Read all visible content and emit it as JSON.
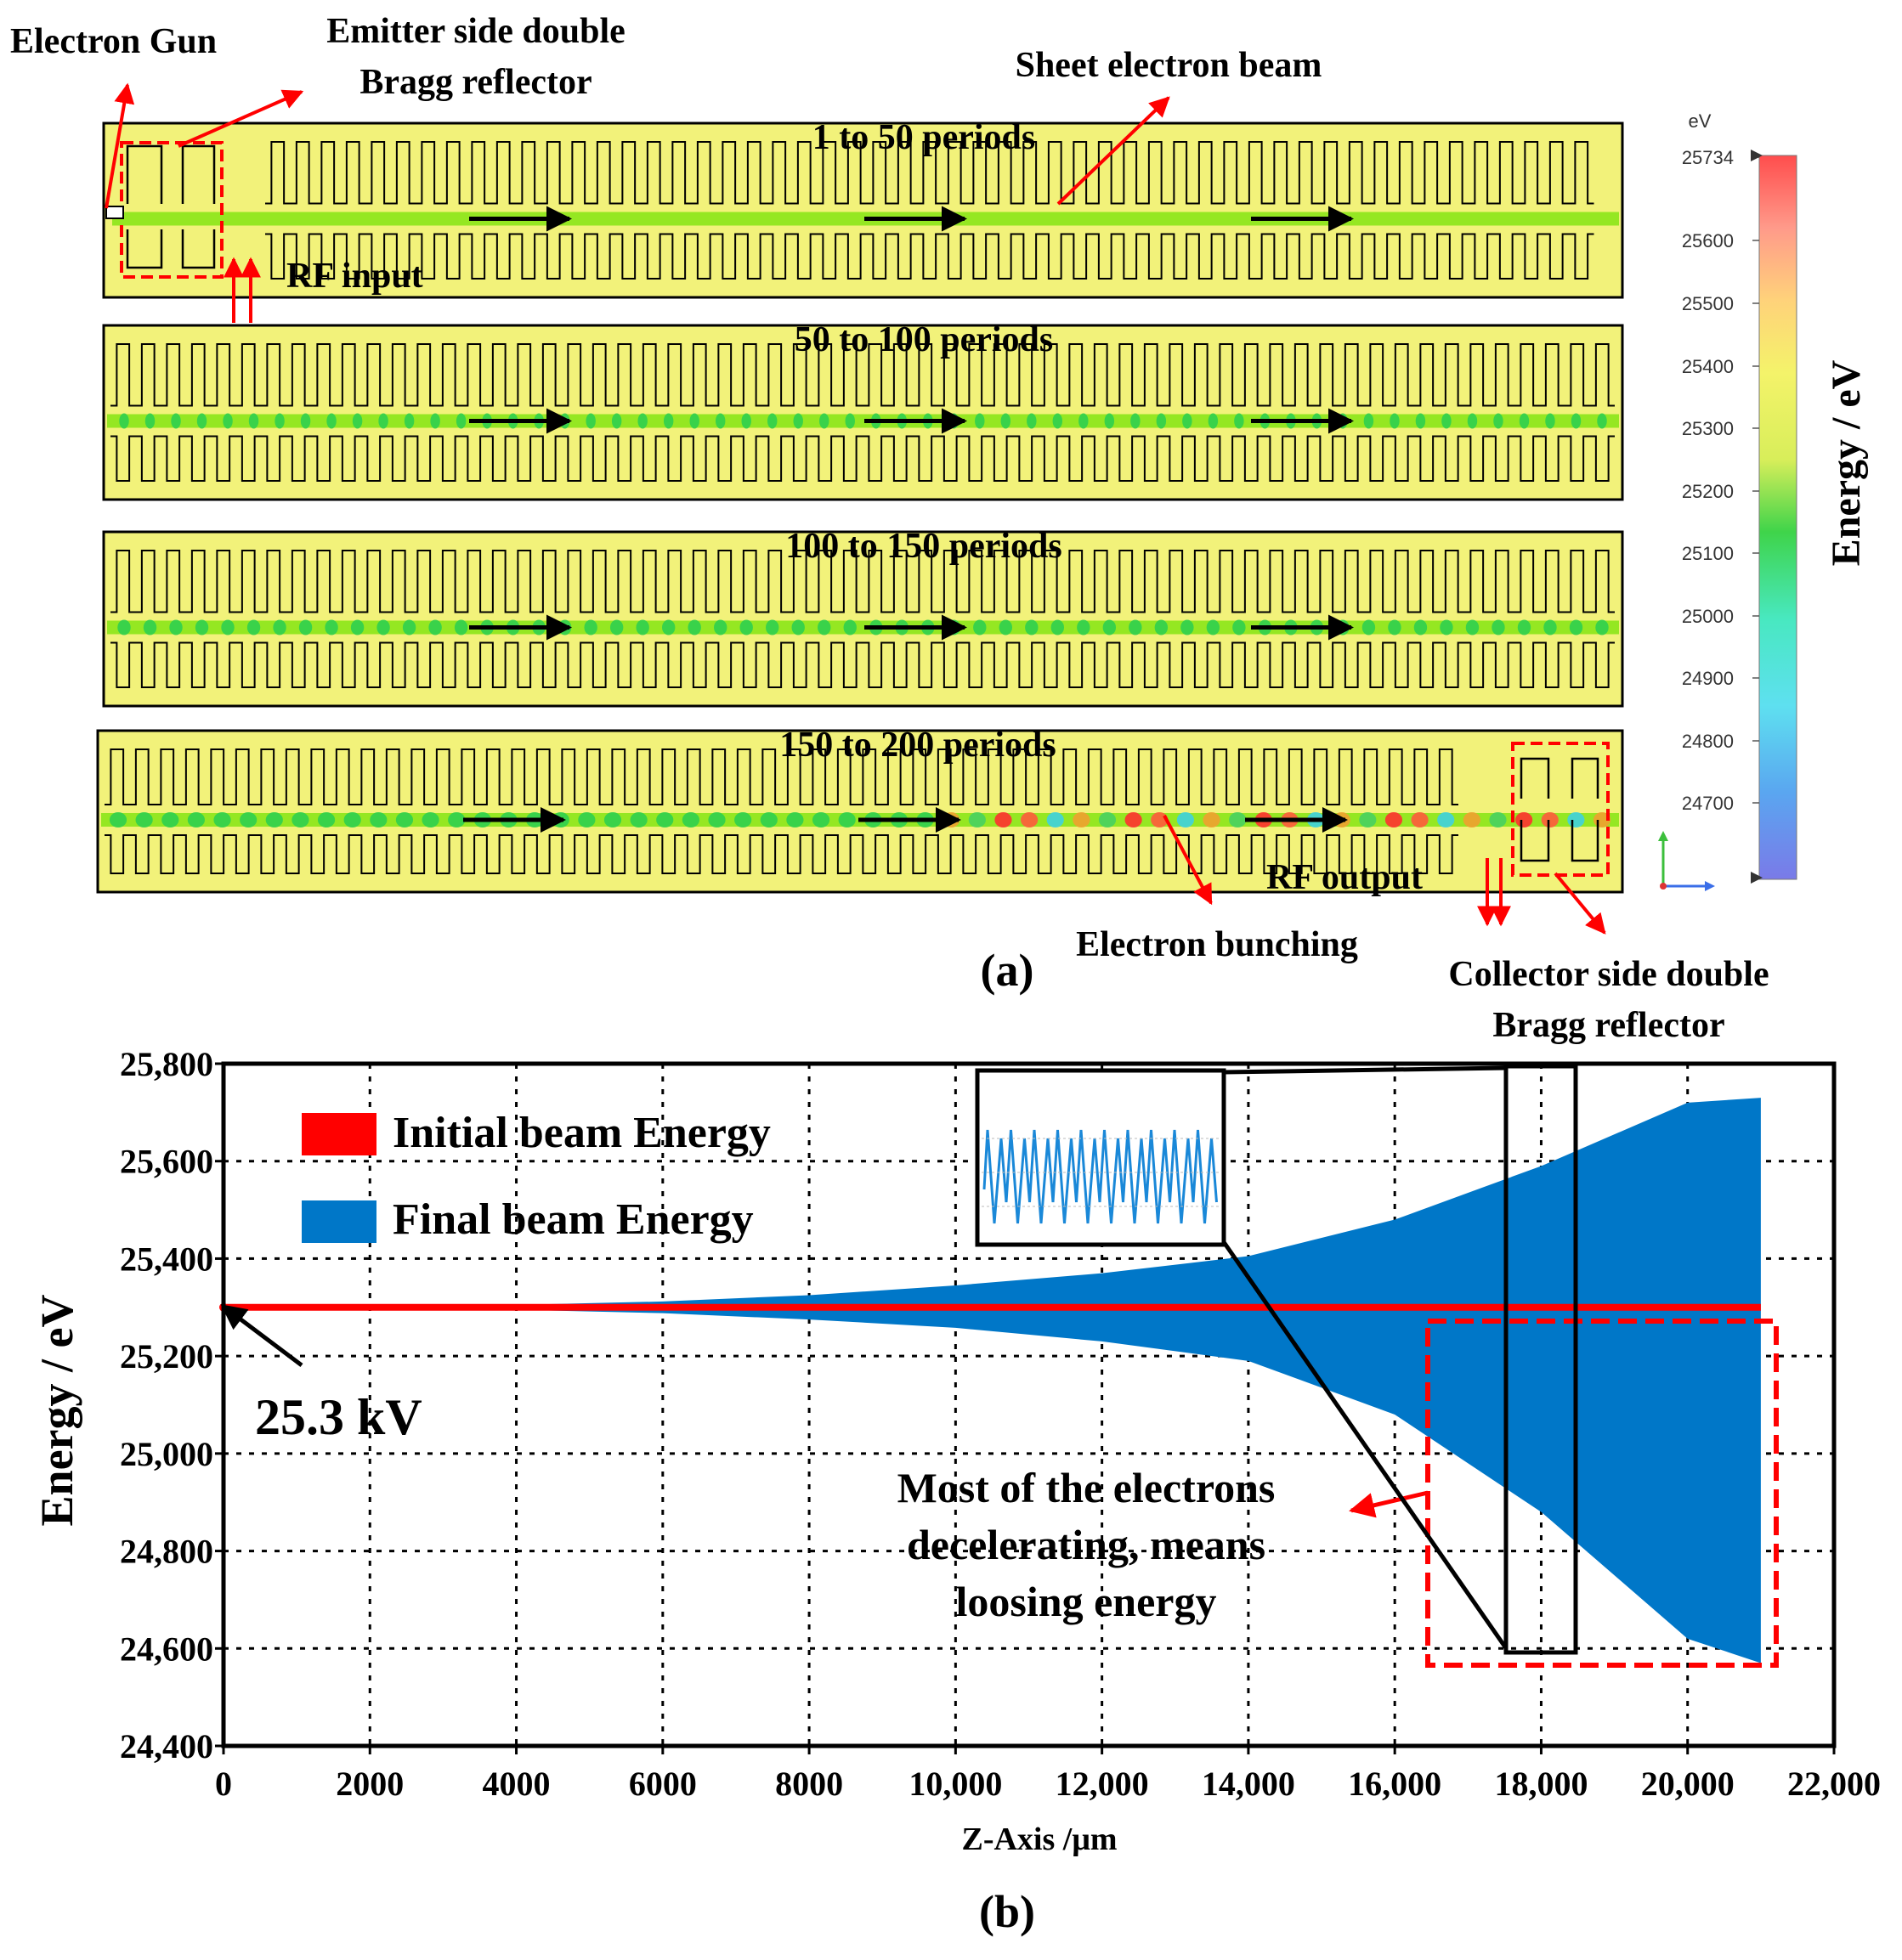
{
  "figure": {
    "panel_a": {
      "caption": "(a)",
      "annotations": {
        "electron_gun": "Electron Gun",
        "emitter_reflector_line1": "Emitter side double",
        "emitter_reflector_line2": "Bragg reflector",
        "sheet_beam": "Sheet electron beam",
        "rf_input": "RF input",
        "rf_output": "RF output",
        "electron_bunching": "Electron bunching",
        "collector_reflector_line1": "Collector side double",
        "collector_reflector_line2": "Bragg reflector"
      },
      "strips": [
        {
          "label": "1 to 50 periods",
          "bunching": 0.0
        },
        {
          "label": "50 to 100 periods",
          "bunching": 0.12
        },
        {
          "label": "100 to 150 periods",
          "bunching": 0.45
        },
        {
          "label": "150 to 200 periods",
          "bunching": 0.85
        }
      ],
      "colorbar": {
        "unit": "eV",
        "title": "Energy / eV",
        "ticks": [
          "25734",
          "25600",
          "25500",
          "25400",
          "25300",
          "25200",
          "25100",
          "25000",
          "24900",
          "24800",
          "24700"
        ]
      }
    },
    "panel_b": {
      "caption": "(b)",
      "voltage_note": "25.3 kV",
      "decel_note": [
        "Most of the electrons",
        "decelerating, means",
        "loosing energy"
      ]
    },
    "colors": {
      "strip_fill": "#f2f27a",
      "beam_green": "#8fe61e",
      "initial_energy": "#ff0000",
      "final_energy": "#0077c8",
      "highlight_box": "#ff0000"
    }
  },
  "chart_data": {
    "type": "area",
    "xlabel": "Z-Axis /μm",
    "ylabel": "Energy / eV",
    "xlim": [
      0,
      22000
    ],
    "ylim": [
      24400,
      25800
    ],
    "xticks": [
      "0",
      "2000",
      "4000",
      "6000",
      "8000",
      "10,000",
      "12,000",
      "14,000",
      "16,000",
      "18,000",
      "20,000",
      "22,000"
    ],
    "yticks": [
      "24,400",
      "24,600",
      "24,800",
      "25,000",
      "25,200",
      "25,400",
      "25,600",
      "25,800"
    ],
    "grid": true,
    "legend_position": "top-left",
    "series": [
      {
        "name": "Initial beam Energy",
        "x": [
          0,
          21000
        ],
        "y": [
          25300,
          25300
        ]
      },
      {
        "name": "Final beam Energy",
        "x": [
          0,
          2000,
          4000,
          6000,
          8000,
          10000,
          12000,
          14000,
          16000,
          18000,
          20000,
          21000
        ],
        "upper": [
          25300,
          25302,
          25305,
          25312,
          25325,
          25345,
          25370,
          25405,
          25480,
          25590,
          25720,
          25730
        ],
        "lower": [
          25300,
          25298,
          25295,
          25288,
          25275,
          25258,
          25230,
          25190,
          25080,
          24880,
          24620,
          24570
        ]
      }
    ]
  }
}
